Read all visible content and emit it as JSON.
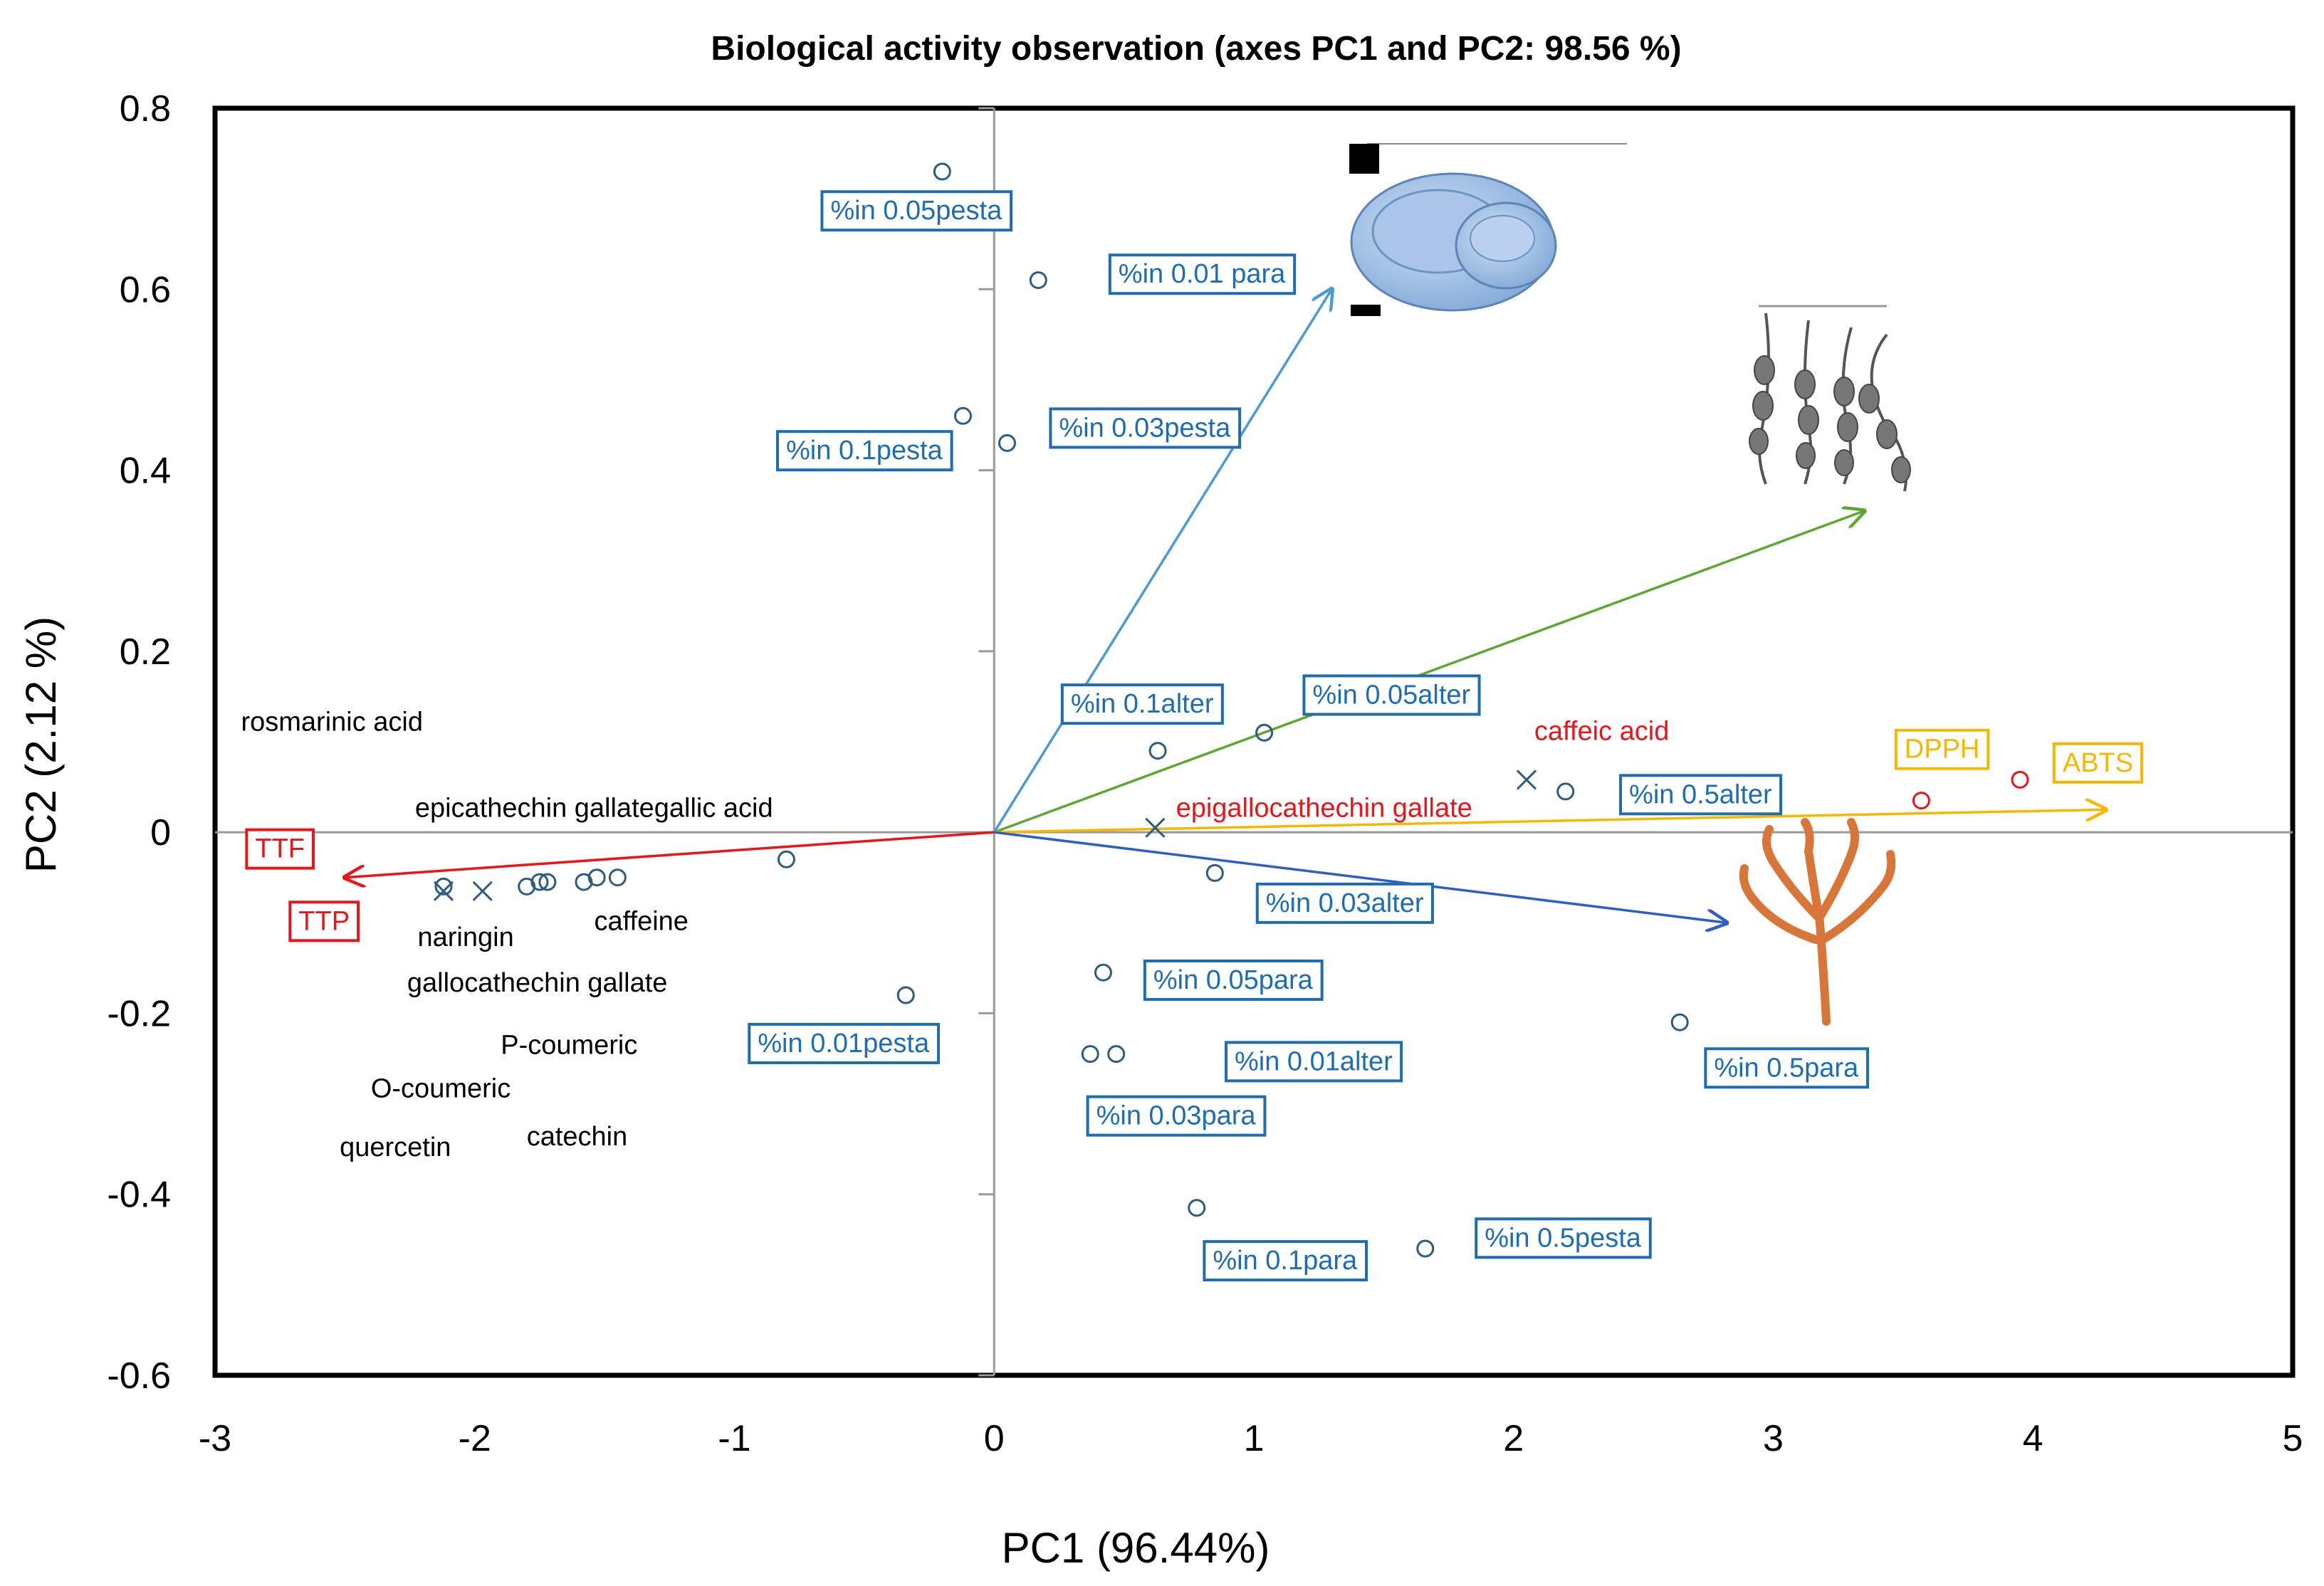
{
  "chart_data": {
    "type": "scatter",
    "title": "Biological activity observation  (axes PC1 and PC2: 98.56 %)",
    "xlabel": "PC1 (96.44%)",
    "ylabel": "PC2 (2.12 %)",
    "xlim": [
      -3,
      5
    ],
    "ylim": [
      -0.6,
      0.8
    ],
    "x_ticks": [
      "-3",
      "-2",
      "-1",
      "0",
      "1",
      "2",
      "3",
      "4",
      "5"
    ],
    "y_ticks": [
      "0.8",
      "0.6",
      "0.4",
      "0.2",
      "0",
      "-0.2",
      "-0.4",
      "-0.6"
    ],
    "colors": {
      "blue": "#1f6db1",
      "red": "#e8151b",
      "yellow": "#f5b800",
      "green": "#5fa632",
      "lightblue": "#4b9ad6",
      "darkblue": "#2f5fc4",
      "gray": "#9a9a9a",
      "circle": "#2e5c7f"
    },
    "points_circles": [
      {
        "x": -0.2,
        "y": 0.73
      },
      {
        "x": 0.17,
        "y": 0.61
      },
      {
        "x": -0.12,
        "y": 0.46
      },
      {
        "x": 0.05,
        "y": 0.43
      },
      {
        "x": 0.63,
        "y": 0.09
      },
      {
        "x": 1.04,
        "y": 0.11
      },
      {
        "x": 2.2,
        "y": 0.045
      },
      {
        "x": 0.85,
        "y": -0.045
      },
      {
        "x": 0.42,
        "y": -0.155
      },
      {
        "x": 0.37,
        "y": -0.245
      },
      {
        "x": 0.47,
        "y": -0.245
      },
      {
        "x": 0.78,
        "y": -0.415
      },
      {
        "x": 1.66,
        "y": -0.46
      },
      {
        "x": 2.64,
        "y": -0.21
      },
      {
        "x": -0.34,
        "y": -0.18
      },
      {
        "x": -0.8,
        "y": -0.03
      },
      {
        "x": -1.45,
        "y": -0.05
      },
      {
        "x": -1.53,
        "y": -0.05
      },
      {
        "x": -1.58,
        "y": -0.055
      },
      {
        "x": -1.72,
        "y": -0.055
      },
      {
        "x": -1.75,
        "y": -0.055
      },
      {
        "x": -1.8,
        "y": -0.06
      },
      {
        "x": -2.12,
        "y": -0.06
      },
      {
        "x": 3.57,
        "y": 0.035,
        "color": "red"
      },
      {
        "x": 3.95,
        "y": 0.058,
        "color": "red"
      }
    ],
    "points_crosses": [
      {
        "x": -2.12,
        "y": -0.065
      },
      {
        "x": -1.97,
        "y": -0.065
      },
      {
        "x": 0.62,
        "y": 0.005
      },
      {
        "x": 2.05,
        "y": 0.058
      }
    ],
    "vectors": [
      {
        "x": 1.3,
        "y": 0.6,
        "color": "lightblue"
      },
      {
        "x": 3.35,
        "y": 0.355,
        "color": "green"
      },
      {
        "x": 4.28,
        "y": 0.025,
        "color": "yellow"
      },
      {
        "x": 2.82,
        "y": -0.1,
        "color": "darkblue"
      },
      {
        "x": -2.5,
        "y": -0.05,
        "color": "red"
      }
    ],
    "labels_boxed": [
      {
        "text": "%in 0.05pesta",
        "x": -0.3,
        "y": 0.685,
        "color": "blue"
      },
      {
        "text": "%in 0.01 para",
        "x": 0.8,
        "y": 0.615,
        "color": "blue"
      },
      {
        "text": "%in 0.1pesta",
        "x": -0.5,
        "y": 0.42,
        "color": "blue"
      },
      {
        "text": "%in 0.03pesta",
        "x": 0.58,
        "y": 0.445,
        "color": "blue"
      },
      {
        "text": "%in 0.1alter",
        "x": 0.57,
        "y": 0.14,
        "color": "blue"
      },
      {
        "text": "%in 0.05alter",
        "x": 1.53,
        "y": 0.15,
        "color": "blue"
      },
      {
        "text": "%in 0.5alter",
        "x": 2.72,
        "y": 0.04,
        "color": "blue"
      },
      {
        "text": "%in 0.03alter",
        "x": 1.35,
        "y": -0.08,
        "color": "blue"
      },
      {
        "text": "%in 0.05para",
        "x": 0.92,
        "y": -0.165,
        "color": "blue"
      },
      {
        "text": "%in 0.01alter",
        "x": 1.23,
        "y": -0.255,
        "color": "blue"
      },
      {
        "text": "%in 0.03para",
        "x": 0.7,
        "y": -0.315,
        "color": "blue"
      },
      {
        "text": "%in 0.5para",
        "x": 3.05,
        "y": -0.262,
        "color": "blue"
      },
      {
        "text": "%in 0.5pesta",
        "x": 2.19,
        "y": -0.45,
        "color": "blue"
      },
      {
        "text": "%in 0.1para",
        "x": 1.12,
        "y": -0.475,
        "color": "blue"
      },
      {
        "text": "%in 0.01pesta",
        "x": -0.58,
        "y": -0.235,
        "color": "blue"
      },
      {
        "text": "DPPH",
        "x": 3.65,
        "y": 0.09,
        "color": "yellow"
      },
      {
        "text": "ABTS",
        "x": 4.25,
        "y": 0.075,
        "color": "yellow"
      },
      {
        "text": "TTF",
        "x": -2.75,
        "y": -0.02,
        "color": "red"
      },
      {
        "text": "TTP",
        "x": -2.58,
        "y": -0.1,
        "color": "red"
      }
    ],
    "labels_plain": [
      {
        "text": "rosmarinic acid",
        "x": -2.9,
        "y": 0.12,
        "color": "#000000"
      },
      {
        "text": "epicathechin gallategallic acid",
        "x": -2.23,
        "y": 0.025,
        "color": "#000000"
      },
      {
        "text": "caffeine",
        "x": -1.54,
        "y": -0.1,
        "color": "#000000"
      },
      {
        "text": "naringin",
        "x": -2.22,
        "y": -0.118,
        "color": "#000000"
      },
      {
        "text": "gallocathechin gallate",
        "x": -2.26,
        "y": -0.168,
        "color": "#000000"
      },
      {
        "text": "P-coumeric",
        "x": -1.9,
        "y": -0.237,
        "color": "#000000"
      },
      {
        "text": "O-coumeric",
        "x": -2.4,
        "y": -0.285,
        "color": "#000000"
      },
      {
        "text": "quercetin",
        "x": -2.52,
        "y": -0.35,
        "color": "#000000"
      },
      {
        "text": "catechin",
        "x": -1.8,
        "y": -0.338,
        "color": "#000000"
      },
      {
        "text": "caffeic acid",
        "x": 2.08,
        "y": 0.11,
        "color": "red"
      },
      {
        "text": "epigallocathechin gallate",
        "x": 0.7,
        "y": 0.025,
        "color": "red"
      }
    ]
  }
}
